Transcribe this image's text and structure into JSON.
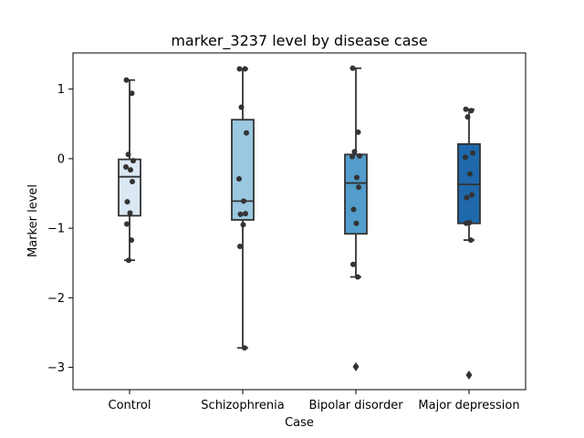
{
  "chart_data": {
    "type": "box",
    "title": "marker_3237 level by disease case",
    "xlabel": "Case",
    "ylabel": "Marker level",
    "ylim": [
      -3.32,
      1.52
    ],
    "yticks": [
      {
        "value": 1,
        "label": "1"
      },
      {
        "value": 0,
        "label": "0"
      },
      {
        "value": -1,
        "label": "−1"
      },
      {
        "value": -2,
        "label": "−2"
      },
      {
        "value": -3,
        "label": "−3"
      }
    ],
    "grid": false,
    "legend": "none",
    "categories": [
      "Control",
      "Schizophrenia",
      "Bipolar disorder",
      "Major depression"
    ],
    "colors": [
      "#dbe8f4",
      "#9ac8e0",
      "#529dcc",
      "#1f68ab"
    ],
    "boxes": [
      {
        "name": "Control",
        "whisker_low": -1.46,
        "q1": -0.82,
        "median": -0.26,
        "q3": -0.01,
        "whisker_high": 1.13,
        "outliers": [],
        "points": [
          1.13,
          0.94,
          0.06,
          -0.03,
          -0.12,
          -0.16,
          -0.33,
          -0.62,
          -0.78,
          -0.94,
          -1.17,
          -1.46
        ]
      },
      {
        "name": "Schizophrenia",
        "whisker_low": -2.72,
        "q1": -0.88,
        "median": -0.61,
        "q3": 0.56,
        "whisker_high": 1.29,
        "outliers": [],
        "points": [
          1.29,
          1.29,
          0.74,
          0.37,
          -0.29,
          -0.61,
          -0.79,
          -0.8,
          -0.95,
          -1.26,
          -2.72
        ]
      },
      {
        "name": "Bipolar disorder",
        "whisker_low": -1.7,
        "q1": -1.08,
        "median": -0.35,
        "q3": 0.06,
        "whisker_high": 1.3,
        "outliers": [
          -2.99
        ],
        "points": [
          1.3,
          0.38,
          0.1,
          0.04,
          0.03,
          -0.27,
          -0.41,
          -0.73,
          -0.93,
          -1.52,
          -1.7
        ]
      },
      {
        "name": "Major depression",
        "whisker_low": -1.17,
        "q1": -0.93,
        "median": -0.37,
        "q3": 0.21,
        "whisker_high": 0.71,
        "outliers": [
          -3.11
        ],
        "points": [
          0.71,
          0.69,
          0.6,
          0.08,
          0.02,
          -0.22,
          -0.52,
          -0.56,
          -0.92,
          -0.93,
          -1.17
        ]
      }
    ]
  }
}
